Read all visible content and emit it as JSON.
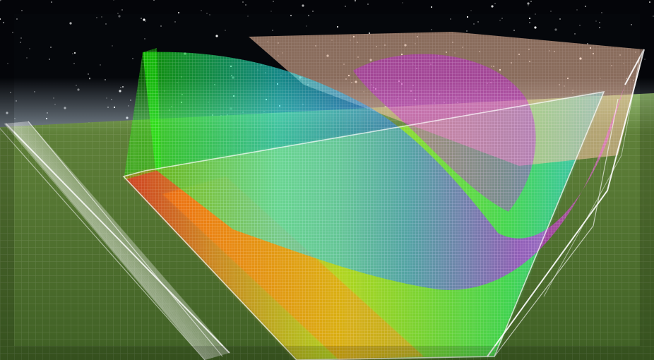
{
  "scene": {
    "colors": {
      "space": "#05070b",
      "horizon_haze": "#c9dcea",
      "ground": "#4a6a2c",
      "grid_line": "#ffffff",
      "wave_green": "#19ff00",
      "wave_cyan": "#20f0e8",
      "wave_blue": "#2a79ff",
      "wave_magenta": "#d000ff",
      "band_yellow": "#d8ff00",
      "band_orange": "#ff8a00",
      "band_red": "#ff1a00",
      "plate_peach": "#f6c0a0"
    }
  }
}
